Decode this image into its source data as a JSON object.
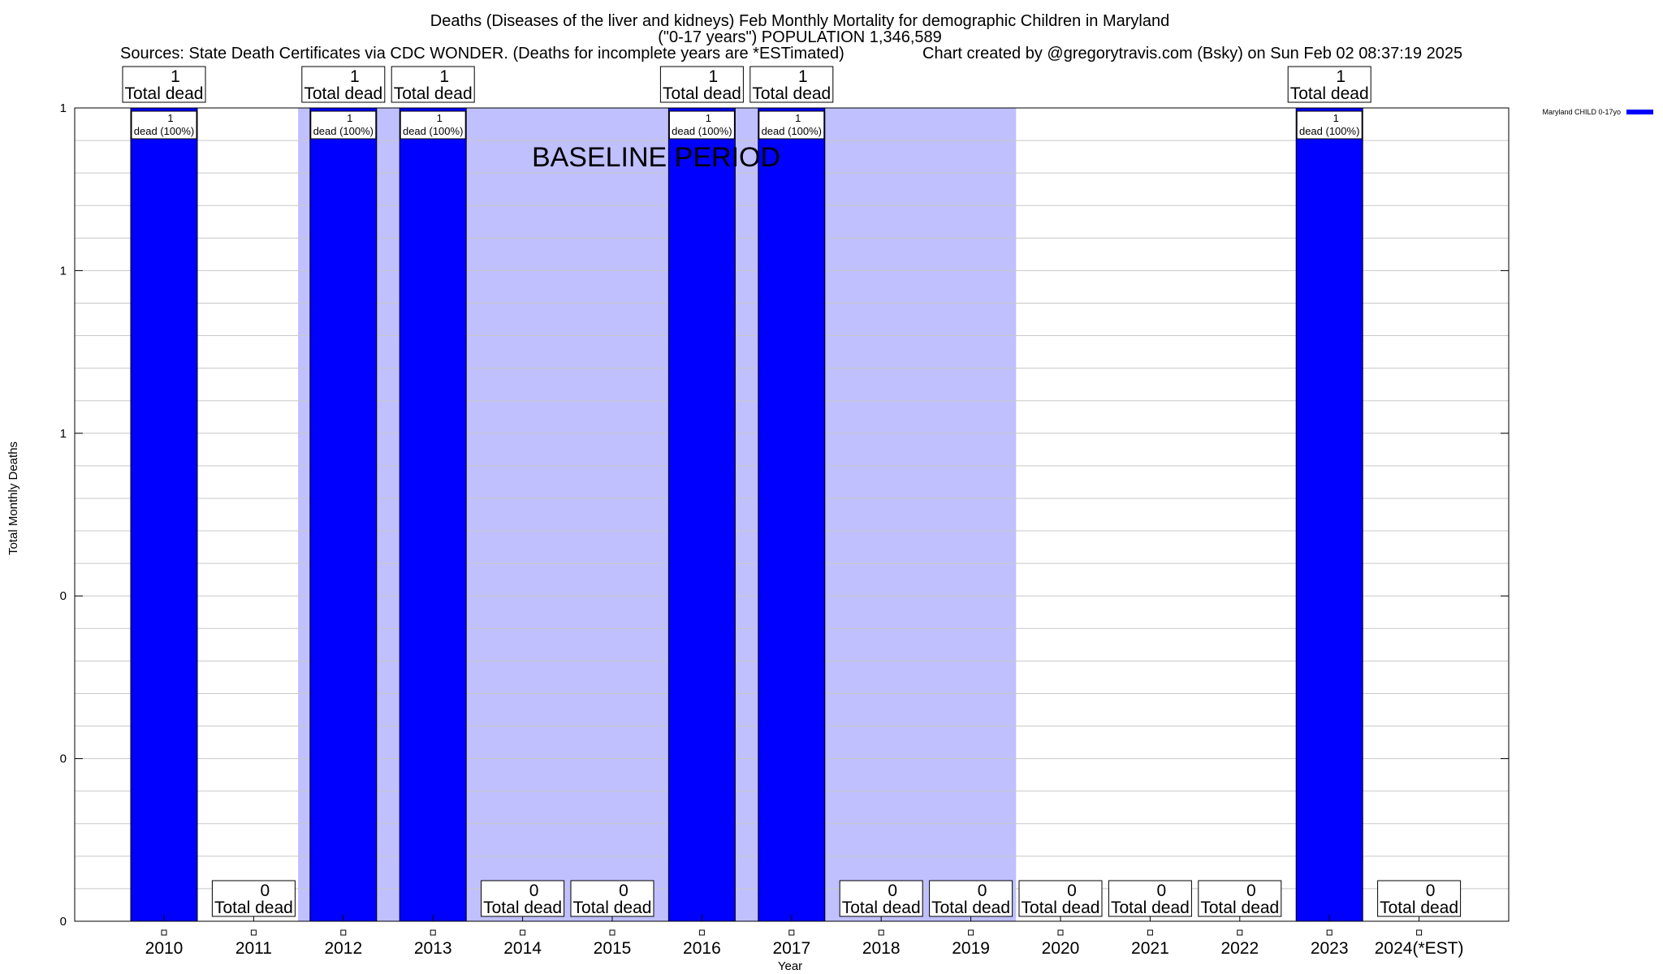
{
  "chart_data": {
    "type": "bar",
    "title_lines": [
      "Deaths (Diseases of the liver and kidneys) Feb Monthly Mortality for demographic Children in Maryland",
      "(\"0-17 years\") POPULATION 1,346,589"
    ],
    "source_text": "Sources: State Death Certificates via CDC WONDER. (Deaths for incomplete years are *ESTimated)",
    "credit_text": "Chart created by @gregorytravis.com (Bsky) on Sun Feb 02 08:37:19 2025",
    "xlabel": "Year",
    "ylabel": "Total Monthly Deaths",
    "categories": [
      "2010",
      "2011",
      "2012",
      "2013",
      "2014",
      "2015",
      "2016",
      "2017",
      "2018",
      "2019",
      "2020",
      "2021",
      "2022",
      "2023",
      "2024(*EST)"
    ],
    "series": [
      {
        "name": "Maryland CHILD 0-17yo",
        "color": "#0000ff",
        "values": [
          1,
          0,
          1,
          1,
          0,
          0,
          1,
          1,
          0,
          0,
          0,
          0,
          0,
          1,
          0
        ]
      }
    ],
    "ylim": [
      0,
      1
    ],
    "y_ticks": [
      {
        "value": 0,
        "label": "0"
      },
      {
        "value": 0.2,
        "label": "0"
      },
      {
        "value": 0.4,
        "label": "0"
      },
      {
        "value": 0.6,
        "label": "1"
      },
      {
        "value": 0.8,
        "label": "1"
      },
      {
        "value": 1.0,
        "label": "1"
      }
    ],
    "total_label_text": "Total dead",
    "bar_label_suffix": "dead (100%)",
    "baseline_period": {
      "label": "BASELINE PERIOD",
      "start_category": "2012",
      "end_category": "2019",
      "color": "#c0c0ff"
    },
    "grid": true,
    "legend_position": "top-right"
  }
}
